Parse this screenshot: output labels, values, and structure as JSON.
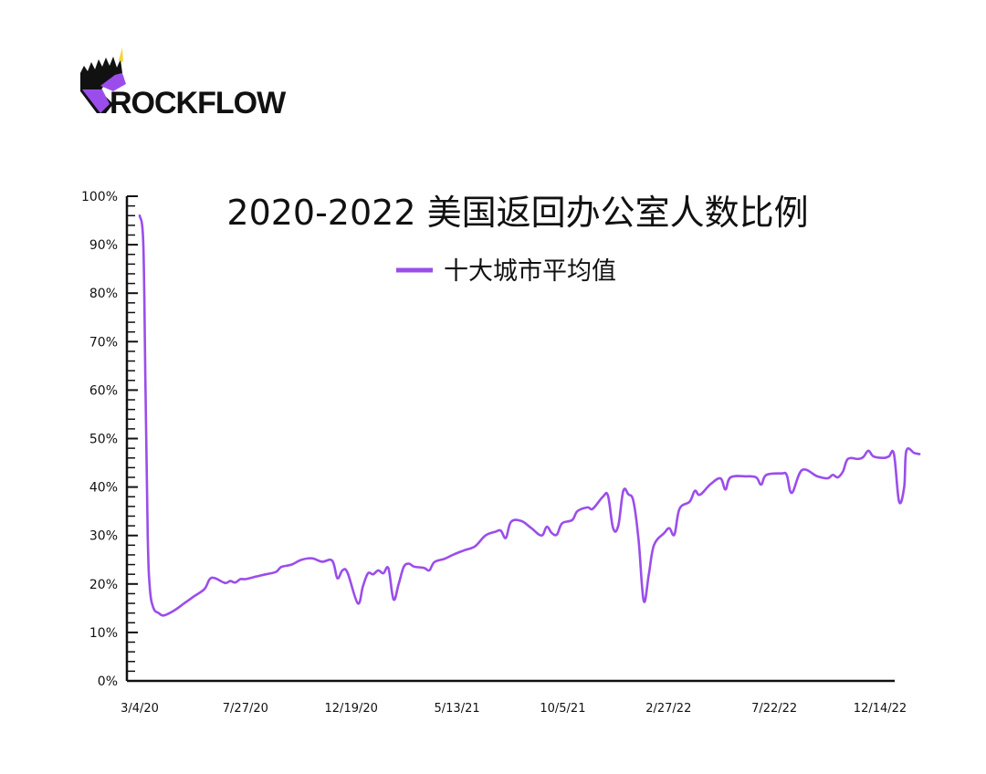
{
  "brand": {
    "name": "ROCKFLOW",
    "colors": {
      "purple": "#9B4DEB",
      "black": "#111111",
      "yellow": "#F2D43B"
    }
  },
  "chart_data": {
    "type": "line",
    "title": "2020-2022 美国返回办公室人数比例",
    "xlabel": "",
    "ylabel": "",
    "ylim": [
      0,
      100
    ],
    "y_ticks": [
      "0%",
      "10%",
      "20%",
      "30%",
      "40%",
      "50%",
      "60%",
      "70%",
      "80%",
      "90%",
      "100%"
    ],
    "x_ticks": [
      "3/4/20",
      "7/27/20",
      "12/19/20",
      "5/13/21",
      "10/5/21",
      "2/27/22",
      "7/22/22",
      "12/14/22"
    ],
    "legend_position": "top-center",
    "grid": false,
    "series": [
      {
        "name": "十大城市平均值",
        "color": "#9B4DEB",
        "points": [
          [
            "2020-03-04",
            96
          ],
          [
            "2020-03-09",
            90
          ],
          [
            "2020-03-12",
            60
          ],
          [
            "2020-03-15",
            30
          ],
          [
            "2020-03-18",
            19
          ],
          [
            "2020-03-23",
            15
          ],
          [
            "2020-03-30",
            14
          ],
          [
            "2020-04-06",
            13.5
          ],
          [
            "2020-04-20",
            14.5
          ],
          [
            "2020-05-04",
            16
          ],
          [
            "2020-05-18",
            17.5
          ],
          [
            "2020-06-01",
            19
          ],
          [
            "2020-06-08",
            21
          ],
          [
            "2020-06-15",
            21.2
          ],
          [
            "2020-06-29",
            20.2
          ],
          [
            "2020-07-06",
            20.6
          ],
          [
            "2020-07-13",
            20.3
          ],
          [
            "2020-07-20",
            21
          ],
          [
            "2020-07-27",
            21
          ],
          [
            "2020-08-10",
            21.5
          ],
          [
            "2020-08-24",
            22
          ],
          [
            "2020-09-07",
            22.5
          ],
          [
            "2020-09-14",
            23.5
          ],
          [
            "2020-09-28",
            24
          ],
          [
            "2020-10-12",
            25
          ],
          [
            "2020-10-26",
            25.3
          ],
          [
            "2020-11-09",
            24.6
          ],
          [
            "2020-11-23",
            24.8
          ],
          [
            "2020-11-30",
            21.2
          ],
          [
            "2020-12-07",
            22.8
          ],
          [
            "2020-12-14",
            22.3
          ],
          [
            "2020-12-28",
            16
          ],
          [
            "2021-01-04",
            19.5
          ],
          [
            "2021-01-11",
            22.2
          ],
          [
            "2021-01-18",
            22
          ],
          [
            "2021-01-25",
            22.8
          ],
          [
            "2021-02-01",
            22.2
          ],
          [
            "2021-02-08",
            23.2
          ],
          [
            "2021-02-15",
            16.8
          ],
          [
            "2021-02-22",
            20
          ],
          [
            "2021-03-01",
            23.5
          ],
          [
            "2021-03-08",
            24.2
          ],
          [
            "2021-03-15",
            23.6
          ],
          [
            "2021-03-29",
            23.3
          ],
          [
            "2021-04-05",
            22.8
          ],
          [
            "2021-04-12",
            24.5
          ],
          [
            "2021-04-26",
            25.2
          ],
          [
            "2021-05-10",
            26.2
          ],
          [
            "2021-05-24",
            27
          ],
          [
            "2021-06-07",
            27.8
          ],
          [
            "2021-06-21",
            30
          ],
          [
            "2021-07-05",
            30.8
          ],
          [
            "2021-07-12",
            31
          ],
          [
            "2021-07-19",
            29.5
          ],
          [
            "2021-07-26",
            32.8
          ],
          [
            "2021-08-09",
            33
          ],
          [
            "2021-08-23",
            31.5
          ],
          [
            "2021-09-06",
            30
          ],
          [
            "2021-09-13",
            31.8
          ],
          [
            "2021-09-20",
            30.5
          ],
          [
            "2021-09-27",
            30.2
          ],
          [
            "2021-10-04",
            32.5
          ],
          [
            "2021-10-18",
            33.2
          ],
          [
            "2021-10-25",
            35
          ],
          [
            "2021-11-08",
            35.8
          ],
          [
            "2021-11-15",
            35.5
          ],
          [
            "2021-11-29",
            38
          ],
          [
            "2021-12-06",
            38.2
          ],
          [
            "2021-12-13",
            31.5
          ],
          [
            "2021-12-20",
            32
          ],
          [
            "2021-12-27",
            39.2
          ],
          [
            "2022-01-03",
            38.5
          ],
          [
            "2022-01-10",
            37
          ],
          [
            "2022-01-17",
            29
          ],
          [
            "2022-01-24",
            16.5
          ],
          [
            "2022-01-31",
            22
          ],
          [
            "2022-02-07",
            28
          ],
          [
            "2022-02-21",
            30.5
          ],
          [
            "2022-02-28",
            31.5
          ],
          [
            "2022-03-07",
            30.2
          ],
          [
            "2022-03-14",
            35.5
          ],
          [
            "2022-03-28",
            37
          ],
          [
            "2022-04-04",
            39.2
          ],
          [
            "2022-04-11",
            38.4
          ],
          [
            "2022-04-25",
            40.5
          ],
          [
            "2022-05-09",
            41.8
          ],
          [
            "2022-05-16",
            39.5
          ],
          [
            "2022-05-23",
            42
          ],
          [
            "2022-06-13",
            42.2
          ],
          [
            "2022-06-27",
            42
          ],
          [
            "2022-07-04",
            40.5
          ],
          [
            "2022-07-11",
            42.5
          ],
          [
            "2022-08-01",
            42.8
          ],
          [
            "2022-08-08",
            42.5
          ],
          [
            "2022-08-15",
            38.8
          ],
          [
            "2022-08-29",
            43.5
          ],
          [
            "2022-09-19",
            42.2
          ],
          [
            "2022-10-03",
            41.8
          ],
          [
            "2022-10-10",
            42.5
          ],
          [
            "2022-10-17",
            42
          ],
          [
            "2022-10-24",
            43.2
          ],
          [
            "2022-10-31",
            45.8
          ],
          [
            "2022-11-14",
            45.8
          ],
          [
            "2022-11-21",
            46.2
          ],
          [
            "2022-11-28",
            47.5
          ],
          [
            "2022-12-05",
            46.3
          ],
          [
            "2022-12-19",
            46
          ],
          [
            "2022-12-26",
            46.3
          ],
          [
            "2023-01-02",
            46.8
          ],
          [
            "2023-01-09",
            37
          ],
          [
            "2023-01-16",
            40
          ],
          [
            "2023-01-19",
            47.5
          ],
          [
            "2023-01-30",
            47
          ],
          [
            "2023-02-06",
            46.8
          ]
        ]
      }
    ]
  }
}
